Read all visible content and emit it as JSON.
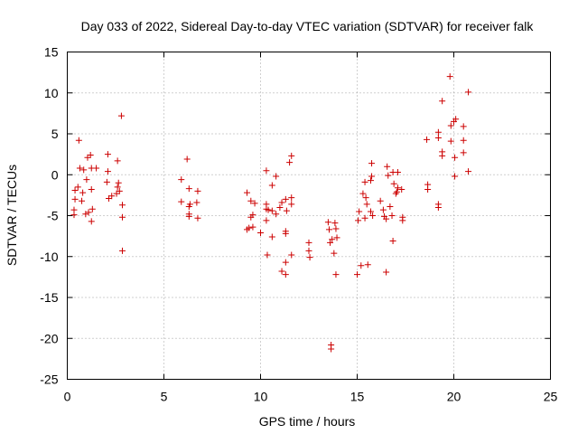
{
  "chart_data": {
    "type": "scatter",
    "title": "Day 033 of 2022, Sidereal Day-to-day VTEC variation (SDTVAR) for receiver falk",
    "xlabel": "GPS time / hours",
    "ylabel": "SDTVAR / TECUs",
    "xlim": [
      0,
      25
    ],
    "ylim": [
      -25,
      15
    ],
    "xticks": [
      0,
      5,
      10,
      15,
      20,
      25
    ],
    "yticks": [
      -25,
      -20,
      -15,
      -10,
      -5,
      0,
      5,
      10,
      15
    ],
    "grid": true,
    "marker": "+",
    "color": "#cc0000",
    "series": [
      {
        "name": "SDTVAR",
        "points": [
          [
            0.35,
            -4.3
          ],
          [
            0.35,
            -4.9
          ],
          [
            0.4,
            -1.9
          ],
          [
            0.4,
            -3.0
          ],
          [
            0.55,
            -1.5
          ],
          [
            0.6,
            4.2
          ],
          [
            0.65,
            0.8
          ],
          [
            0.75,
            -3.2
          ],
          [
            0.8,
            -2.2
          ],
          [
            0.85,
            0.6
          ],
          [
            0.95,
            -4.8
          ],
          [
            1.0,
            -0.6
          ],
          [
            1.05,
            2.1
          ],
          [
            1.1,
            -4.6
          ],
          [
            1.2,
            2.4
          ],
          [
            1.25,
            -1.8
          ],
          [
            1.25,
            -5.7
          ],
          [
            1.25,
            0.8
          ],
          [
            1.3,
            -4.2
          ],
          [
            1.5,
            0.8
          ],
          [
            2.05,
            -0.9
          ],
          [
            2.1,
            2.5
          ],
          [
            2.1,
            0.4
          ],
          [
            2.15,
            -2.9
          ],
          [
            2.3,
            -2.6
          ],
          [
            2.55,
            -2.3
          ],
          [
            2.6,
            1.7
          ],
          [
            2.6,
            -1.5
          ],
          [
            2.65,
            -1.0
          ],
          [
            2.7,
            -2.0
          ],
          [
            2.8,
            7.2
          ],
          [
            2.85,
            -3.7
          ],
          [
            2.85,
            -5.2
          ],
          [
            2.85,
            -9.3
          ],
          [
            5.9,
            -0.6
          ],
          [
            5.9,
            -3.3
          ],
          [
            6.2,
            1.9
          ],
          [
            6.3,
            -3.9
          ],
          [
            6.3,
            -4.8
          ],
          [
            6.3,
            -5.1
          ],
          [
            6.3,
            -1.7
          ],
          [
            6.35,
            -3.6
          ],
          [
            6.7,
            -3.4
          ],
          [
            6.75,
            -2.0
          ],
          [
            6.75,
            -5.3
          ],
          [
            9.3,
            -2.2
          ],
          [
            9.3,
            -6.7
          ],
          [
            9.4,
            -6.5
          ],
          [
            9.5,
            -5.2
          ],
          [
            9.5,
            -3.2
          ],
          [
            9.6,
            -4.9
          ],
          [
            9.6,
            -6.4
          ],
          [
            9.7,
            -3.5
          ],
          [
            10.0,
            -7.1
          ],
          [
            10.3,
            -3.6
          ],
          [
            10.3,
            -4.2
          ],
          [
            10.3,
            -5.6
          ],
          [
            10.3,
            0.5
          ],
          [
            10.35,
            -9.8
          ],
          [
            10.4,
            -4.3
          ],
          [
            10.6,
            -1.3
          ],
          [
            10.6,
            -4.4
          ],
          [
            10.6,
            -7.6
          ],
          [
            10.8,
            -0.2
          ],
          [
            10.8,
            -4.8
          ],
          [
            11.0,
            -4.0
          ],
          [
            11.1,
            -3.4
          ],
          [
            11.1,
            -11.8
          ],
          [
            11.3,
            -7.2
          ],
          [
            11.3,
            -6.9
          ],
          [
            11.3,
            -10.7
          ],
          [
            11.3,
            -12.2
          ],
          [
            11.3,
            -3.0
          ],
          [
            11.35,
            -4.4
          ],
          [
            11.5,
            1.5
          ],
          [
            11.6,
            -2.8
          ],
          [
            11.6,
            -3.6
          ],
          [
            11.6,
            -9.8
          ],
          [
            11.6,
            2.3
          ],
          [
            12.5,
            -8.3
          ],
          [
            12.5,
            -9.3
          ],
          [
            12.55,
            -10.1
          ],
          [
            13.5,
            -5.8
          ],
          [
            13.55,
            -6.7
          ],
          [
            13.6,
            -8.3
          ],
          [
            13.65,
            -20.8
          ],
          [
            13.65,
            -21.3
          ],
          [
            13.7,
            -7.9
          ],
          [
            13.8,
            -9.6
          ],
          [
            13.85,
            -5.9
          ],
          [
            13.9,
            -6.6
          ],
          [
            13.9,
            -12.2
          ],
          [
            13.95,
            -7.7
          ],
          [
            15.0,
            -12.2
          ],
          [
            15.05,
            -5.6
          ],
          [
            15.1,
            -4.5
          ],
          [
            15.2,
            -11.1
          ],
          [
            15.3,
            -2.3
          ],
          [
            15.4,
            -0.9
          ],
          [
            15.4,
            -5.3
          ],
          [
            15.45,
            -2.8
          ],
          [
            15.5,
            -3.6
          ],
          [
            15.55,
            -11.0
          ],
          [
            15.7,
            -0.7
          ],
          [
            15.7,
            -4.5
          ],
          [
            15.75,
            1.4
          ],
          [
            15.75,
            -0.2
          ],
          [
            15.8,
            -5.0
          ],
          [
            16.2,
            -3.2
          ],
          [
            16.35,
            -4.3
          ],
          [
            16.4,
            -5.1
          ],
          [
            16.5,
            -5.4
          ],
          [
            16.5,
            -11.9
          ],
          [
            16.55,
            1.0
          ],
          [
            16.6,
            -0.1
          ],
          [
            16.7,
            -3.9
          ],
          [
            16.8,
            -5.0
          ],
          [
            16.85,
            0.3
          ],
          [
            16.85,
            -8.1
          ],
          [
            16.9,
            -1.1
          ],
          [
            17.0,
            -2.3
          ],
          [
            17.05,
            -2.1
          ],
          [
            17.1,
            0.3
          ],
          [
            17.1,
            -1.6
          ],
          [
            17.3,
            -1.8
          ],
          [
            17.35,
            -5.2
          ],
          [
            17.35,
            -5.6
          ],
          [
            18.6,
            4.3
          ],
          [
            18.65,
            -1.2
          ],
          [
            18.65,
            -1.8
          ],
          [
            19.2,
            4.5
          ],
          [
            19.2,
            5.2
          ],
          [
            19.2,
            -3.6
          ],
          [
            19.2,
            -4.0
          ],
          [
            19.4,
            9.0
          ],
          [
            19.4,
            2.8
          ],
          [
            19.4,
            2.3
          ],
          [
            19.8,
            12.0
          ],
          [
            19.85,
            6.0
          ],
          [
            19.85,
            4.1
          ],
          [
            20.0,
            6.5
          ],
          [
            20.05,
            -0.2
          ],
          [
            20.05,
            2.1
          ],
          [
            20.1,
            6.8
          ],
          [
            20.5,
            5.9
          ],
          [
            20.5,
            4.2
          ],
          [
            20.5,
            2.7
          ],
          [
            20.75,
            10.1
          ],
          [
            20.75,
            0.4
          ]
        ]
      }
    ]
  }
}
